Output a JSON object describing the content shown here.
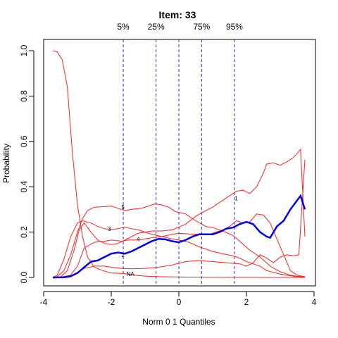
{
  "chart_data": {
    "type": "line",
    "title": "Item:  33",
    "xlabel": "Norm 0 1 Quantiles",
    "ylabel": "Probability",
    "xlim": [
      -4,
      4
    ],
    "ylim": [
      0,
      1
    ],
    "x_ticks": [
      -4,
      -2,
      0,
      2,
      4
    ],
    "y_ticks": [
      0.0,
      0.2,
      0.4,
      0.6,
      0.8,
      1.0
    ],
    "x_tick_labels": [
      "-4",
      "-2",
      "0",
      "2",
      "4"
    ],
    "y_tick_labels": [
      "0.0",
      "0.2",
      "0.4",
      "0.6",
      "0.8",
      "1.0"
    ],
    "quantile_lines": [
      {
        "label": "5%",
        "x": -1.645
      },
      {
        "label": "25%",
        "x": -0.674
      },
      {
        "label": "",
        "x": 0
      },
      {
        "label": "75%",
        "x": 0.674
      },
      {
        "label": "95%",
        "x": 1.645
      }
    ],
    "series": [
      {
        "label_text": "NA",
        "label_at": [
          -1.55,
          0.016
        ],
        "color": "#ff2020",
        "points": [
          [
            -3.73,
            1.0
          ],
          [
            -3.6,
            0.995
          ],
          [
            -3.45,
            0.96
          ],
          [
            -3.3,
            0.84
          ],
          [
            -3.15,
            0.55
          ],
          [
            -3.0,
            0.32
          ],
          [
            -2.85,
            0.18
          ],
          [
            -2.7,
            0.09
          ],
          [
            -2.5,
            0.045
          ],
          [
            -2.25,
            0.03
          ],
          [
            -2.0,
            0.02
          ],
          [
            -1.7,
            0.018
          ],
          [
            -1.5,
            0.015
          ],
          [
            -1.2,
            0.008
          ],
          [
            -0.9,
            0.005
          ],
          [
            -0.5,
            0.003
          ],
          [
            0,
            0.002
          ],
          [
            1,
            0.001
          ],
          [
            3.73,
            0
          ]
        ]
      },
      {
        "label_text": "5",
        "label_at": [
          -1.7,
          0.31
        ],
        "color": "#ff2020",
        "points": [
          [
            -3.73,
            0
          ],
          [
            -3.6,
            0.003
          ],
          [
            -3.4,
            0.03
          ],
          [
            -3.2,
            0.1
          ],
          [
            -3.0,
            0.2
          ],
          [
            -2.85,
            0.26
          ],
          [
            -2.7,
            0.295
          ],
          [
            -2.5,
            0.31
          ],
          [
            -2.2,
            0.312
          ],
          [
            -2.0,
            0.315
          ],
          [
            -1.8,
            0.305
          ],
          [
            -1.6,
            0.295
          ],
          [
            -1.4,
            0.3
          ],
          [
            -1.1,
            0.305
          ],
          [
            -0.9,
            0.315
          ],
          [
            -0.7,
            0.325
          ],
          [
            -0.5,
            0.32
          ],
          [
            -0.3,
            0.31
          ],
          [
            -0.1,
            0.29
          ],
          [
            0.2,
            0.28
          ],
          [
            0.5,
            0.25
          ],
          [
            0.8,
            0.225
          ],
          [
            1.0,
            0.22
          ],
          [
            1.3,
            0.205
          ],
          [
            1.6,
            0.185
          ],
          [
            1.8,
            0.16
          ],
          [
            2.1,
            0.12
          ],
          [
            2.4,
            0.09
          ],
          [
            2.7,
            0.05
          ],
          [
            3.0,
            0.025
          ],
          [
            3.3,
            0.01
          ],
          [
            3.5,
            0.005
          ],
          [
            3.73,
            0.003
          ]
        ]
      },
      {
        "label_text": "3",
        "label_at": [
          -2.1,
          0.215
        ],
        "color": "#ff2020",
        "points": [
          [
            -3.73,
            0
          ],
          [
            -3.6,
            0.01
          ],
          [
            -3.4,
            0.08
          ],
          [
            -3.2,
            0.18
          ],
          [
            -3.0,
            0.24
          ],
          [
            -2.85,
            0.25
          ],
          [
            -2.6,
            0.24
          ],
          [
            -2.4,
            0.225
          ],
          [
            -2.2,
            0.215
          ],
          [
            -2.0,
            0.212
          ],
          [
            -1.8,
            0.215
          ],
          [
            -1.6,
            0.222
          ],
          [
            -1.4,
            0.215
          ],
          [
            -1.2,
            0.21
          ],
          [
            -1.0,
            0.2
          ],
          [
            -0.8,
            0.19
          ],
          [
            -0.5,
            0.18
          ],
          [
            -0.2,
            0.17
          ],
          [
            0,
            0.165
          ],
          [
            0.3,
            0.155
          ],
          [
            0.6,
            0.135
          ],
          [
            1.0,
            0.115
          ],
          [
            1.3,
            0.105
          ],
          [
            1.6,
            0.095
          ],
          [
            1.8,
            0.085
          ],
          [
            2.0,
            0.07
          ],
          [
            2.2,
            0.06
          ],
          [
            2.4,
            0.05
          ],
          [
            2.6,
            0.03
          ],
          [
            3.0,
            0.015
          ],
          [
            3.4,
            0.005
          ],
          [
            3.73,
            0.002
          ]
        ]
      },
      {
        "label_text": "4",
        "label_at": [
          -1.25,
          0.17
        ],
        "color": "#ff2020",
        "points": [
          [
            -3.73,
            0
          ],
          [
            -3.5,
            0.002
          ],
          [
            -3.3,
            0.03
          ],
          [
            -3.1,
            0.12
          ],
          [
            -2.95,
            0.21
          ],
          [
            -2.8,
            0.24
          ],
          [
            -2.6,
            0.2
          ],
          [
            -2.4,
            0.165
          ],
          [
            -2.2,
            0.15
          ],
          [
            -2.0,
            0.145
          ],
          [
            -1.8,
            0.15
          ],
          [
            -1.6,
            0.165
          ],
          [
            -1.4,
            0.18
          ],
          [
            -1.2,
            0.195
          ],
          [
            -1.0,
            0.2
          ],
          [
            -0.8,
            0.205
          ],
          [
            -0.5,
            0.205
          ],
          [
            -0.2,
            0.21
          ],
          [
            0,
            0.222
          ],
          [
            0.2,
            0.235
          ],
          [
            0.5,
            0.27
          ],
          [
            0.8,
            0.295
          ],
          [
            1.0,
            0.31
          ],
          [
            1.2,
            0.33
          ],
          [
            1.5,
            0.36
          ],
          [
            1.7,
            0.38
          ],
          [
            1.9,
            0.385
          ],
          [
            2.1,
            0.37
          ],
          [
            2.3,
            0.4
          ],
          [
            2.5,
            0.46
          ],
          [
            2.6,
            0.5
          ],
          [
            2.8,
            0.505
          ],
          [
            3.0,
            0.495
          ],
          [
            3.2,
            0.51
          ],
          [
            3.4,
            0.53
          ],
          [
            3.6,
            0.565
          ],
          [
            3.73,
            0.18
          ]
        ]
      },
      {
        "label_text": "1",
        "label_at": [
          1.65,
          0.35
        ],
        "color": "#ff2020",
        "points": [
          [
            -3.73,
            0
          ],
          [
            -3.5,
            0.001
          ],
          [
            -3.2,
            0.01
          ],
          [
            -3.0,
            0.05
          ],
          [
            -2.8,
            0.13
          ],
          [
            -2.5,
            0.155
          ],
          [
            -2.2,
            0.16
          ],
          [
            -2.0,
            0.165
          ],
          [
            -1.7,
            0.16
          ],
          [
            -1.5,
            0.165
          ],
          [
            -1.2,
            0.165
          ],
          [
            -1.0,
            0.17
          ],
          [
            -0.8,
            0.175
          ],
          [
            -0.5,
            0.18
          ],
          [
            -0.2,
            0.19
          ],
          [
            0,
            0.195
          ],
          [
            0.3,
            0.192
          ],
          [
            0.6,
            0.19
          ],
          [
            0.9,
            0.19
          ],
          [
            1.1,
            0.2
          ],
          [
            1.3,
            0.21
          ],
          [
            1.5,
            0.225
          ],
          [
            1.7,
            0.25
          ],
          [
            1.9,
            0.24
          ],
          [
            2.1,
            0.245
          ],
          [
            2.3,
            0.28
          ],
          [
            2.5,
            0.275
          ],
          [
            2.7,
            0.24
          ],
          [
            2.9,
            0.17
          ],
          [
            3.1,
            0.1
          ],
          [
            3.3,
            0.03
          ],
          [
            3.5,
            0.01
          ],
          [
            3.73,
            0.003
          ]
        ]
      },
      {
        "label_text": "",
        "label_at": null,
        "color": "#ff2020",
        "points": [
          [
            -3.73,
            0
          ],
          [
            -3.5,
            0.001
          ],
          [
            -3.2,
            0.005
          ],
          [
            -3.0,
            0.02
          ],
          [
            -2.8,
            0.04
          ],
          [
            -2.5,
            0.05
          ],
          [
            -2.2,
            0.05
          ],
          [
            -2.0,
            0.045
          ],
          [
            -1.7,
            0.04
          ],
          [
            -1.4,
            0.038
          ],
          [
            -1.0,
            0.04
          ],
          [
            -0.6,
            0.045
          ],
          [
            -0.2,
            0.055
          ],
          [
            0.2,
            0.07
          ],
          [
            0.6,
            0.075
          ],
          [
            1.0,
            0.07
          ],
          [
            1.4,
            0.065
          ],
          [
            1.8,
            0.06
          ],
          [
            2.0,
            0.05
          ],
          [
            2.2,
            0.065
          ],
          [
            2.4,
            0.1
          ],
          [
            2.6,
            0.085
          ],
          [
            2.8,
            0.065
          ],
          [
            3.0,
            0.09
          ],
          [
            3.2,
            0.1
          ],
          [
            3.4,
            0.095
          ],
          [
            3.55,
            0.1
          ],
          [
            3.73,
            0.52
          ]
        ]
      },
      {
        "label_text": "2",
        "label_at": [
          -1.7,
          0.1
        ],
        "color": "#0000ee",
        "points": [
          [
            -3.73,
            0
          ],
          [
            -3.4,
            0.001
          ],
          [
            -3.2,
            0.005
          ],
          [
            -3.0,
            0.02
          ],
          [
            -2.8,
            0.045
          ],
          [
            -2.6,
            0.07
          ],
          [
            -2.4,
            0.075
          ],
          [
            -2.2,
            0.09
          ],
          [
            -2.0,
            0.105
          ],
          [
            -1.8,
            0.11
          ],
          [
            -1.6,
            0.105
          ],
          [
            -1.4,
            0.115
          ],
          [
            -1.2,
            0.13
          ],
          [
            -1.0,
            0.145
          ],
          [
            -0.8,
            0.16
          ],
          [
            -0.6,
            0.17
          ],
          [
            -0.4,
            0.168
          ],
          [
            -0.2,
            0.16
          ],
          [
            0,
            0.155
          ],
          [
            0.2,
            0.165
          ],
          [
            0.4,
            0.18
          ],
          [
            0.6,
            0.19
          ],
          [
            0.8,
            0.19
          ],
          [
            1.0,
            0.19
          ],
          [
            1.2,
            0.2
          ],
          [
            1.4,
            0.215
          ],
          [
            1.6,
            0.22
          ],
          [
            1.8,
            0.235
          ],
          [
            2.0,
            0.245
          ],
          [
            2.2,
            0.235
          ],
          [
            2.4,
            0.2
          ],
          [
            2.6,
            0.18
          ],
          [
            2.7,
            0.175
          ],
          [
            2.9,
            0.225
          ],
          [
            3.1,
            0.25
          ],
          [
            3.3,
            0.3
          ],
          [
            3.5,
            0.34
          ],
          [
            3.6,
            0.36
          ],
          [
            3.73,
            0.3
          ]
        ]
      }
    ]
  }
}
